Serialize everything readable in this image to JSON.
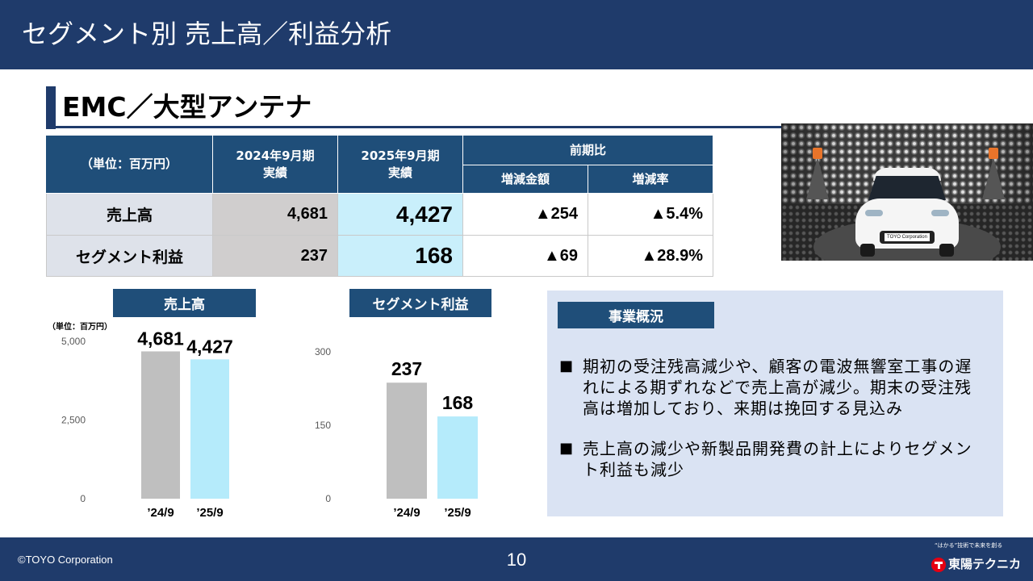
{
  "colors": {
    "navy": "#1f3b6b",
    "table_header": "#1f4e79",
    "row_label_bg": "#dee2ea",
    "fy2024_bg": "#d0cece",
    "fy2025_bg": "#c9effb",
    "overview_bg": "#dae3f3"
  },
  "header": {
    "title": "セグメント別 売上高／利益分析"
  },
  "section": {
    "title": "EMC／大型アンテナ"
  },
  "photo": {
    "plate_text": "TOYO Corporation"
  },
  "table": {
    "unit_label": "（単位：百万円）",
    "fy2024_header": [
      "2024年9月期",
      "実績"
    ],
    "fy2025_header": [
      "2025年9月期",
      "実績"
    ],
    "comparison_header": "前期比",
    "change_amount_header": "増減金額",
    "change_rate_header": "増減率",
    "rows": [
      {
        "label": "売上高",
        "fy2024": "4,681",
        "fy2025": "4,427",
        "change_amount": "▲254",
        "change_rate": "▲5.4%"
      },
      {
        "label": "セグメント利益",
        "fy2024": "237",
        "fy2025": "168",
        "change_amount": "▲69",
        "change_rate": "▲28.9%"
      }
    ]
  },
  "overview": {
    "title": "事業概況",
    "bullets": [
      {
        "marker": "■",
        "lines": [
          "期初の受注残高減少や、顧客の電波無響室工事の遅",
          "れによる期ずれなどで売上高が減少。期末の受注残",
          "高は増加しており、来期は挽回する見込み"
        ]
      },
      {
        "marker": "■",
        "lines": [
          "売上高の減少や新製品開発費の計上によりセグメン",
          "ト利益も減少"
        ]
      }
    ]
  },
  "footer": {
    "copyright": "©TOYO Corporation",
    "page_number": "10",
    "logo_name": "東陽テクニカ",
    "logo_tagline": "“はかる”技術で未来を創る"
  },
  "chart_data": [
    {
      "type": "bar",
      "title": "売上高",
      "unit_label": "（単位：百万円）",
      "categories": [
        "’24/9",
        "’25/9"
      ],
      "values": [
        4681,
        4427
      ],
      "value_labels": [
        "4,681",
        "4,427"
      ],
      "bar_colors": [
        "#bfbfbf",
        "#b5ebfb"
      ],
      "ylim": [
        0,
        5000
      ],
      "yticks": [
        0,
        2500,
        5000
      ],
      "ytick_labels": [
        "0",
        "2,500",
        "5,000"
      ],
      "grid": false
    },
    {
      "type": "bar",
      "title": "セグメント利益",
      "categories": [
        "’24/9",
        "’25/9"
      ],
      "values": [
        237,
        168
      ],
      "value_labels": [
        "237",
        "168"
      ],
      "bar_colors": [
        "#bfbfbf",
        "#b5ebfb"
      ],
      "ylim": [
        0,
        300
      ],
      "yticks": [
        0,
        150,
        300
      ],
      "ytick_labels": [
        "0",
        "150",
        "300"
      ],
      "grid": false
    }
  ]
}
